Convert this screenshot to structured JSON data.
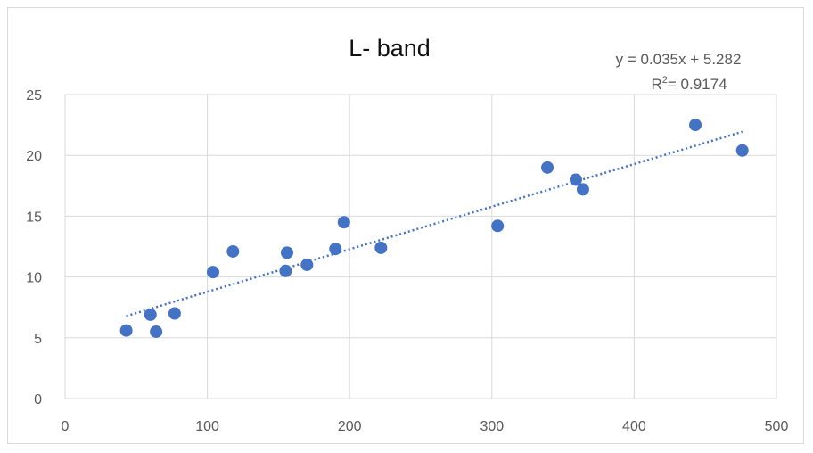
{
  "chart_data": {
    "type": "scatter",
    "title": "L-  band",
    "xlabel": "",
    "ylabel": "",
    "xlim": [
      0,
      500
    ],
    "ylim": [
      0,
      25
    ],
    "x_ticks": [
      "0",
      "100",
      "200",
      "300",
      "400",
      "500"
    ],
    "y_ticks": [
      "0",
      "5",
      "10",
      "15",
      "20",
      "25"
    ],
    "grid": true,
    "legend": "none",
    "marker_color": "#4472C4",
    "trendline_color": "#4472C4",
    "points": [
      {
        "x": 43,
        "y": 5.6
      },
      {
        "x": 60,
        "y": 6.9
      },
      {
        "x": 64,
        "y": 5.5
      },
      {
        "x": 77,
        "y": 7.0
      },
      {
        "x": 104,
        "y": 10.4
      },
      {
        "x": 118,
        "y": 12.1
      },
      {
        "x": 155,
        "y": 10.5
      },
      {
        "x": 156,
        "y": 12.0
      },
      {
        "x": 170,
        "y": 11.0
      },
      {
        "x": 190,
        "y": 12.3
      },
      {
        "x": 196,
        "y": 14.5
      },
      {
        "x": 222,
        "y": 12.4
      },
      {
        "x": 304,
        "y": 14.2
      },
      {
        "x": 339,
        "y": 19.0
      },
      {
        "x": 359,
        "y": 18.0
      },
      {
        "x": 364,
        "y": 17.2
      },
      {
        "x": 443,
        "y": 22.5
      },
      {
        "x": 476,
        "y": 20.4
      }
    ],
    "trendline": {
      "slope": 0.035,
      "intercept": 5.282,
      "x_range": [
        43,
        476
      ],
      "equation": "y = 0.035x + 5.282",
      "r2_prefix": "R",
      "r2_sup": "2",
      "r2_value": "= 0.9174"
    }
  }
}
